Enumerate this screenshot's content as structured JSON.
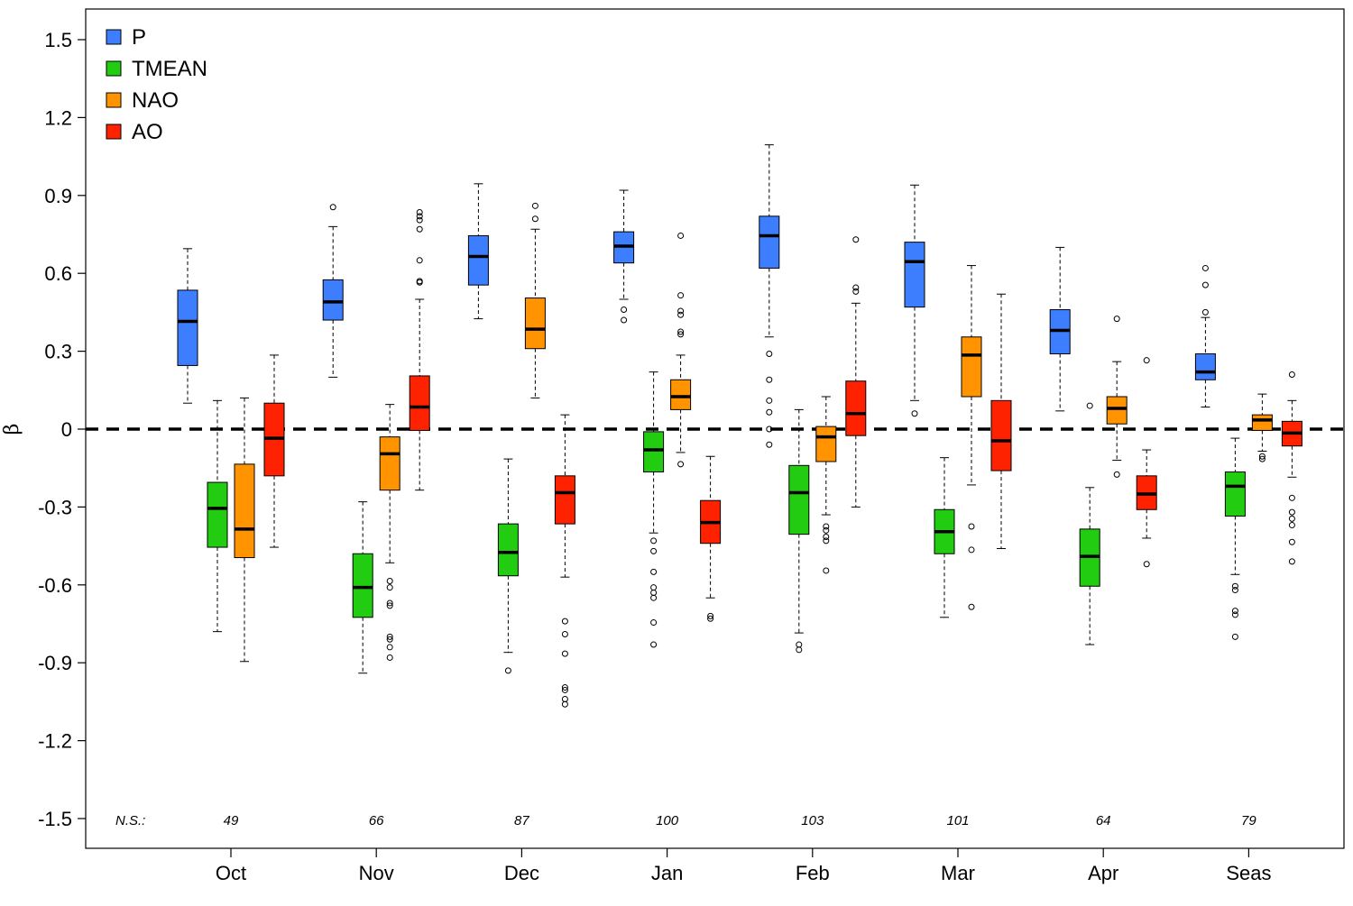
{
  "chart_data": {
    "type": "box",
    "ylabel": "β",
    "ylim": [
      -1.55,
      1.55
    ],
    "yticks": [
      1.5,
      1.2,
      0.9,
      0.6,
      0.3,
      0,
      -0.3,
      -0.6,
      -0.9,
      -1.2,
      -1.5
    ],
    "ytick_labels": [
      "1.5",
      "1.2",
      "0.9",
      "0.6",
      "0.3",
      "0",
      "-0.3",
      "-0.6",
      "-0.9",
      "-1.2",
      "-1.5"
    ],
    "reference_line": 0,
    "categories": [
      "Oct",
      "Nov",
      "Dec",
      "Jan",
      "Feb",
      "Mar",
      "Apr",
      "Seas"
    ],
    "ns_label": "N.S.:",
    "ns_values": [
      "49",
      "66",
      "87",
      "100",
      "103",
      "101",
      "64",
      "79"
    ],
    "legend_position": "top-left",
    "series": [
      {
        "name": "P",
        "color": "#3d7eff",
        "boxes": [
          {
            "whisker_low": 0.1,
            "q1": 0.245,
            "median": 0.415,
            "q3": 0.535,
            "whisker_high": 0.695,
            "outliers": []
          },
          {
            "whisker_low": 0.2,
            "q1": 0.42,
            "median": 0.49,
            "q3": 0.575,
            "whisker_high": 0.78,
            "outliers": [
              0.855
            ]
          },
          {
            "whisker_low": 0.425,
            "q1": 0.555,
            "median": 0.665,
            "q3": 0.745,
            "whisker_high": 0.945,
            "outliers": []
          },
          {
            "whisker_low": 0.5,
            "q1": 0.64,
            "median": 0.705,
            "q3": 0.76,
            "whisker_high": 0.92,
            "outliers": [
              0.46,
              0.42
            ]
          },
          {
            "whisker_low": 0.355,
            "q1": 0.62,
            "median": 0.745,
            "q3": 0.82,
            "whisker_high": 1.095,
            "outliers": [
              0.29,
              0.19,
              0.11,
              0.065,
              0.0,
              -0.06
            ]
          },
          {
            "whisker_low": 0.11,
            "q1": 0.47,
            "median": 0.645,
            "q3": 0.72,
            "whisker_high": 0.94,
            "outliers": [
              0.06
            ]
          },
          {
            "whisker_low": 0.07,
            "q1": 0.29,
            "median": 0.38,
            "q3": 0.46,
            "whisker_high": 0.7,
            "outliers": []
          },
          {
            "whisker_low": 0.085,
            "q1": 0.19,
            "median": 0.22,
            "q3": 0.29,
            "whisker_high": 0.43,
            "outliers": [
              0.62,
              0.555,
              0.45
            ]
          }
        ]
      },
      {
        "name": "TMEAN",
        "color": "#22cc11",
        "boxes": [
          {
            "whisker_low": -0.78,
            "q1": -0.455,
            "median": -0.305,
            "q3": -0.205,
            "whisker_high": 0.11,
            "outliers": []
          },
          {
            "whisker_low": -0.94,
            "q1": -0.725,
            "median": -0.61,
            "q3": -0.48,
            "whisker_high": -0.28,
            "outliers": []
          },
          {
            "whisker_low": -0.86,
            "q1": -0.565,
            "median": -0.475,
            "q3": -0.365,
            "whisker_high": -0.115,
            "outliers": [
              -0.93
            ]
          },
          {
            "whisker_low": -0.4,
            "q1": -0.165,
            "median": -0.08,
            "q3": -0.01,
            "whisker_high": 0.22,
            "outliers": [
              -0.43,
              -0.47,
              -0.55,
              -0.61,
              -0.63,
              -0.65,
              -0.745,
              -0.83
            ]
          },
          {
            "whisker_low": -0.785,
            "q1": -0.405,
            "median": -0.245,
            "q3": -0.14,
            "whisker_high": 0.075,
            "outliers": [
              -0.83,
              -0.85
            ]
          },
          {
            "whisker_low": -0.725,
            "q1": -0.48,
            "median": -0.395,
            "q3": -0.31,
            "whisker_high": -0.11,
            "outliers": []
          },
          {
            "whisker_low": -0.83,
            "q1": -0.605,
            "median": -0.49,
            "q3": -0.385,
            "whisker_high": -0.225,
            "outliers": [
              0.09
            ]
          },
          {
            "whisker_low": -0.56,
            "q1": -0.335,
            "median": -0.22,
            "q3": -0.165,
            "whisker_high": -0.035,
            "outliers": [
              -0.605,
              -0.62,
              -0.7,
              -0.715,
              -0.8
            ]
          }
        ]
      },
      {
        "name": "NAO",
        "color": "#ff9300",
        "boxes": [
          {
            "whisker_low": -0.895,
            "q1": -0.495,
            "median": -0.385,
            "q3": -0.135,
            "whisker_high": 0.12,
            "outliers": []
          },
          {
            "whisker_low": -0.515,
            "q1": -0.235,
            "median": -0.095,
            "q3": -0.03,
            "whisker_high": 0.095,
            "outliers": [
              -0.585,
              -0.61,
              -0.67,
              -0.68,
              -0.8,
              -0.81,
              -0.84,
              -0.88
            ]
          },
          {
            "whisker_low": 0.12,
            "q1": 0.31,
            "median": 0.385,
            "q3": 0.505,
            "whisker_high": 0.77,
            "outliers": [
              0.81,
              0.86
            ]
          },
          {
            "whisker_low": -0.09,
            "q1": 0.075,
            "median": 0.125,
            "q3": 0.19,
            "whisker_high": 0.285,
            "outliers": [
              0.745,
              0.515,
              0.455,
              0.44,
              0.375,
              0.365,
              -0.135
            ]
          },
          {
            "whisker_low": -0.33,
            "q1": -0.125,
            "median": -0.03,
            "q3": 0.01,
            "whisker_high": 0.125,
            "outliers": [
              -0.375,
              -0.39,
              -0.415,
              -0.43,
              -0.545
            ]
          },
          {
            "whisker_low": -0.215,
            "q1": 0.125,
            "median": 0.285,
            "q3": 0.355,
            "whisker_high": 0.63,
            "outliers": [
              -0.375,
              -0.465,
              -0.685
            ]
          },
          {
            "whisker_low": -0.12,
            "q1": 0.02,
            "median": 0.08,
            "q3": 0.125,
            "whisker_high": 0.26,
            "outliers": [
              0.425,
              -0.175
            ]
          },
          {
            "whisker_low": -0.085,
            "q1": -0.005,
            "median": 0.035,
            "q3": 0.055,
            "whisker_high": 0.135,
            "outliers": [
              -0.105,
              -0.115
            ]
          }
        ]
      },
      {
        "name": "AO",
        "color": "#ff2200",
        "boxes": [
          {
            "whisker_low": -0.455,
            "q1": -0.18,
            "median": -0.035,
            "q3": 0.1,
            "whisker_high": 0.285,
            "outliers": []
          },
          {
            "whisker_low": -0.235,
            "q1": -0.005,
            "median": 0.085,
            "q3": 0.205,
            "whisker_high": 0.5,
            "outliers": [
              0.57,
              0.565,
              0.65,
              0.77,
              0.805,
              0.82,
              0.835
            ]
          },
          {
            "whisker_low": -0.57,
            "q1": -0.365,
            "median": -0.245,
            "q3": -0.18,
            "whisker_high": 0.055,
            "outliers": [
              -0.74,
              -0.79,
              -0.865,
              -0.995,
              -1.005,
              -1.04,
              -1.06
            ]
          },
          {
            "whisker_low": -0.65,
            "q1": -0.44,
            "median": -0.36,
            "q3": -0.275,
            "whisker_high": -0.105,
            "outliers": [
              -0.72,
              -0.73
            ]
          },
          {
            "whisker_low": -0.3,
            "q1": -0.025,
            "median": 0.06,
            "q3": 0.185,
            "whisker_high": 0.485,
            "outliers": [
              0.53,
              0.545,
              0.73
            ]
          },
          {
            "whisker_low": -0.46,
            "q1": -0.16,
            "median": -0.045,
            "q3": 0.11,
            "whisker_high": 0.52,
            "outliers": []
          },
          {
            "whisker_low": -0.42,
            "q1": -0.31,
            "median": -0.25,
            "q3": -0.18,
            "whisker_high": -0.08,
            "outliers": [
              0.265,
              -0.52
            ]
          },
          {
            "whisker_low": -0.185,
            "q1": -0.065,
            "median": -0.015,
            "q3": 0.03,
            "whisker_high": 0.11,
            "outliers": [
              0.21,
              -0.265,
              -0.32,
              -0.345,
              -0.37,
              -0.435,
              -0.51
            ]
          }
        ]
      }
    ]
  }
}
